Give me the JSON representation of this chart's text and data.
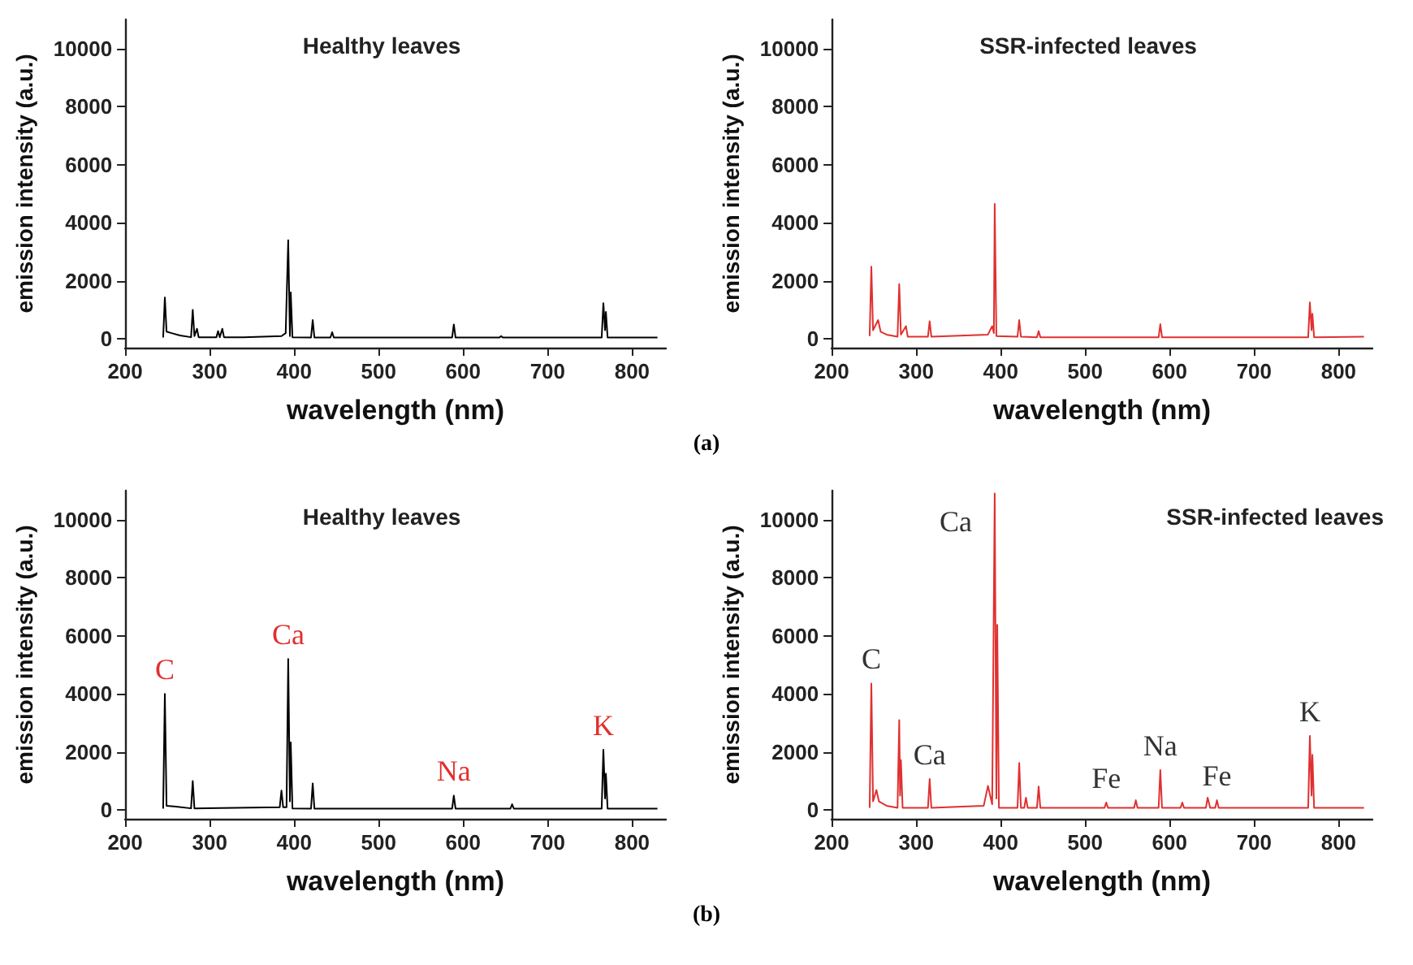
{
  "chart_data": [
    {
      "type": "line",
      "title": "Healthy leaves",
      "xlabel": "wavelength (nm)",
      "ylabel": "emission intensity (a.u.)",
      "xlim": [
        200,
        840
      ],
      "xticks": [
        200,
        300,
        400,
        500,
        600,
        700,
        800
      ],
      "ylim": [
        -300,
        11000
      ],
      "yticks": [
        0,
        2000,
        4000,
        6000,
        8000,
        10000
      ],
      "grid": false,
      "marker": "none",
      "annotations": [
        "(a)"
      ],
      "series": [
        {
          "color": "#000000",
          "x": [
            245,
            247,
            249,
            255,
            265,
            278,
            280,
            282,
            285,
            287,
            308,
            310,
            312,
            315,
            317,
            340,
            385,
            390,
            393,
            395,
            396,
            398,
            420,
            422,
            424,
            443,
            445,
            447,
            587,
            589,
            591,
            643,
            645,
            647,
            764,
            766,
            768,
            769,
            771,
            830
          ],
          "values": [
            50,
            1430,
            250,
            200,
            120,
            60,
            1000,
            100,
            350,
            60,
            60,
            270,
            60,
            350,
            60,
            60,
            100,
            200,
            3400,
            100,
            1600,
            60,
            50,
            650,
            50,
            50,
            230,
            50,
            50,
            500,
            50,
            50,
            100,
            50,
            50,
            1230,
            300,
            930,
            50,
            50
          ]
        }
      ]
    },
    {
      "type": "line",
      "title": "SSR-infected leaves",
      "xlabel": "wavelength (nm)",
      "ylabel": "emission intensity (a.u.)",
      "xlim": [
        200,
        840
      ],
      "xticks": [
        200,
        300,
        400,
        500,
        600,
        700,
        800
      ],
      "ylim": [
        -300,
        11000
      ],
      "yticks": [
        0,
        2000,
        4000,
        6000,
        8000,
        10000
      ],
      "grid": false,
      "marker": "none",
      "series": [
        {
          "color": "#e03030",
          "x": [
            245,
            247,
            249,
            255,
            258,
            265,
            278,
            280,
            282,
            288,
            290,
            314,
            316,
            318,
            385,
            390,
            392,
            393,
            395,
            420,
            422,
            424,
            443,
            445,
            447,
            587,
            589,
            591,
            764,
            766,
            768,
            769,
            771,
            830
          ],
          "values": [
            100,
            2490,
            300,
            650,
            250,
            150,
            80,
            1890,
            150,
            440,
            80,
            80,
            610,
            80,
            150,
            440,
            200,
            4650,
            100,
            80,
            650,
            80,
            60,
            270,
            60,
            60,
            510,
            60,
            60,
            1260,
            300,
            870,
            60,
            80
          ]
        }
      ]
    },
    {
      "type": "line",
      "title": "Healthy leaves",
      "xlabel": "wavelength (nm)",
      "ylabel": "emission intensity (a.u.)",
      "xlim": [
        200,
        840
      ],
      "xticks": [
        200,
        300,
        400,
        500,
        600,
        700,
        800
      ],
      "ylim": [
        -300,
        11000
      ],
      "yticks": [
        0,
        2000,
        4000,
        6000,
        8000,
        10000
      ],
      "grid": false,
      "marker": "none",
      "annotations": [
        "(b)",
        {
          "text": "C",
          "x": 247,
          "y": 4000
        },
        {
          "text": "Ca",
          "x": 393,
          "y": 5200
        },
        {
          "text": "Na",
          "x": 589,
          "y": 500
        },
        {
          "text": "K",
          "x": 766,
          "y": 2080
        }
      ],
      "series": [
        {
          "color": "#000000",
          "x": [
            245,
            247,
            249,
            260,
            278,
            280,
            282,
            383,
            385,
            387,
            391,
            393,
            395,
            396,
            398,
            420,
            422,
            424,
            587,
            589,
            591,
            656,
            658,
            660,
            764,
            766,
            768,
            769,
            771,
            830
          ],
          "values": [
            50,
            4000,
            150,
            120,
            60,
            1000,
            60,
            100,
            670,
            100,
            100,
            5200,
            300,
            2330,
            60,
            50,
            920,
            50,
            50,
            500,
            50,
            50,
            200,
            50,
            50,
            2080,
            400,
            1250,
            50,
            50
          ]
        }
      ]
    },
    {
      "type": "line",
      "title": "SSR-infected leaves",
      "xlabel": "wavelength (nm)",
      "ylabel": "emission intensity (a.u.)",
      "xlim": [
        200,
        840
      ],
      "xticks": [
        200,
        300,
        400,
        500,
        600,
        700,
        800
      ],
      "ylim": [
        -300,
        11000
      ],
      "yticks": [
        0,
        2000,
        4000,
        6000,
        8000,
        10000
      ],
      "grid": false,
      "marker": "none",
      "annotations": [
        {
          "text": "C",
          "x": 247,
          "y": 4360
        },
        {
          "text": "Ca",
          "x": 393,
          "y": 10900
        },
        {
          "text": "Ca",
          "x": 316,
          "y": 1070
        },
        {
          "text": "Fe",
          "x": 525,
          "y": 260
        },
        {
          "text": "Na",
          "x": 589,
          "y": 1380
        },
        {
          "text": "Fe",
          "x": 656,
          "y": 340
        },
        {
          "text": "K",
          "x": 766,
          "y": 2550
        }
      ],
      "series": [
        {
          "color": "#e03030",
          "x": [
            245,
            247,
            249,
            253,
            256,
            265,
            278,
            280,
            281,
            282,
            284,
            314,
            316,
            318,
            380,
            385,
            390,
            393,
            395,
            396,
            398,
            420,
            422,
            424,
            428,
            430,
            432,
            443,
            445,
            447,
            523,
            525,
            527,
            558,
            560,
            562,
            587,
            589,
            591,
            613,
            615,
            617,
            643,
            645,
            648,
            654,
            656,
            658,
            764,
            766,
            768,
            769,
            771,
            830
          ],
          "values": [
            80,
            4360,
            300,
            690,
            300,
            150,
            80,
            3100,
            500,
            1720,
            80,
            80,
            1070,
            80,
            150,
            830,
            200,
            10900,
            400,
            6380,
            80,
            80,
            1620,
            80,
            80,
            430,
            80,
            80,
            810,
            80,
            80,
            260,
            80,
            80,
            340,
            80,
            80,
            1380,
            80,
            80,
            260,
            80,
            80,
            430,
            80,
            80,
            340,
            80,
            80,
            2550,
            500,
            1900,
            80,
            80
          ]
        }
      ]
    }
  ]
}
